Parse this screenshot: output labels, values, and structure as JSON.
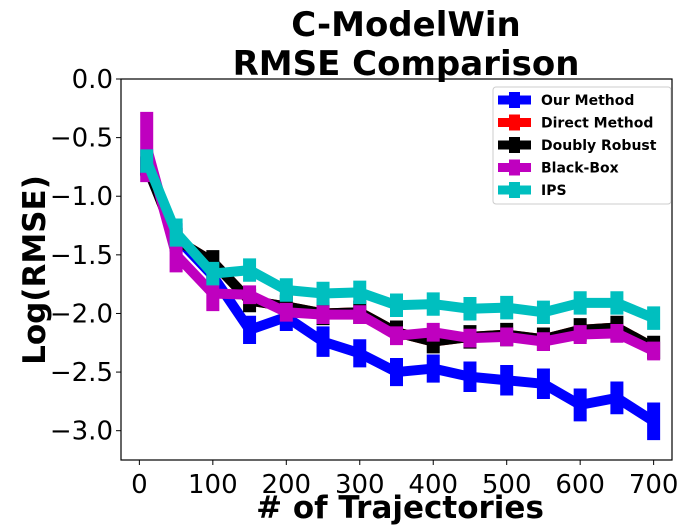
{
  "chart_data": {
    "type": "line",
    "title_line1": "C-ModelWin",
    "title_line2": "RMSE Comparison",
    "xlabel": "# of Trajectories",
    "ylabel": "Log(RMSE)",
    "xlim": [
      -25,
      725
    ],
    "ylim": [
      -3.25,
      0.0
    ],
    "xticks": [
      0,
      100,
      200,
      300,
      400,
      500,
      600,
      700
    ],
    "xtick_labels": [
      "0",
      "100",
      "200",
      "300",
      "400",
      "500",
      "600",
      "700"
    ],
    "yticks": [
      0.0,
      -0.5,
      -1.0,
      -1.5,
      -2.0,
      -2.5,
      -3.0
    ],
    "ytick_labels": [
      "0.0",
      "−0.5",
      "−1.0",
      "−1.5",
      "−2.0",
      "−2.5",
      "−3.0"
    ],
    "x": [
      10,
      50,
      100,
      150,
      200,
      250,
      300,
      350,
      400,
      450,
      500,
      550,
      600,
      650,
      700
    ],
    "legend_position": "top-right",
    "series": [
      {
        "name": "Our Method",
        "color": "#0000ff",
        "values": [
          -0.75,
          -1.35,
          -1.68,
          -2.14,
          -2.03,
          -2.24,
          -2.34,
          -2.5,
          -2.47,
          -2.54,
          -2.57,
          -2.6,
          -2.78,
          -2.72,
          -2.92
        ],
        "errors": [
          0.08,
          0.12,
          0.1,
          0.12,
          0.12,
          0.13,
          0.12,
          0.12,
          0.12,
          0.13,
          0.13,
          0.13,
          0.14,
          0.14,
          0.16
        ]
      },
      {
        "name": "Direct Method",
        "color": "#ff0000",
        "values": [
          -0.74,
          -1.37,
          -1.56,
          -1.89,
          -1.94,
          -2.0,
          -1.99,
          -2.16,
          -2.24,
          -2.2,
          -2.18,
          -2.22,
          -2.14,
          -2.12,
          -2.29
        ]
      },
      {
        "name": "Doubly Robust",
        "color": "#000000",
        "values": [
          -0.74,
          -1.37,
          -1.56,
          -1.89,
          -1.94,
          -2.0,
          -1.99,
          -2.16,
          -2.24,
          -2.2,
          -2.18,
          -2.22,
          -2.14,
          -2.12,
          -2.29
        ],
        "errors": [
          0.08,
          0.1,
          0.1,
          0.1,
          0.1,
          0.1,
          0.1,
          0.1,
          0.1,
          0.1,
          0.1,
          0.1,
          0.1,
          0.1,
          0.1
        ]
      },
      {
        "name": "Black-Box",
        "color": "#bf00bf",
        "values": [
          -0.58,
          -1.5,
          -1.83,
          -1.84,
          -1.99,
          -2.01,
          -2.01,
          -2.19,
          -2.16,
          -2.21,
          -2.2,
          -2.24,
          -2.18,
          -2.17,
          -2.32
        ],
        "errors": [
          0.3,
          0.15,
          0.15,
          0.08,
          0.08,
          0.08,
          0.08,
          0.08,
          0.08,
          0.08,
          0.08,
          0.08,
          0.08,
          0.08,
          0.08
        ]
      },
      {
        "name": "IPS",
        "color": "#00bfbf",
        "values": [
          -0.7,
          -1.31,
          -1.66,
          -1.63,
          -1.8,
          -1.83,
          -1.82,
          -1.93,
          -1.92,
          -1.96,
          -1.95,
          -1.99,
          -1.91,
          -1.91,
          -2.04
        ],
        "errors": [
          0.1,
          0.12,
          0.1,
          0.1,
          0.1,
          0.1,
          0.1,
          0.1,
          0.1,
          0.1,
          0.1,
          0.1,
          0.1,
          0.1,
          0.1
        ]
      }
    ]
  }
}
